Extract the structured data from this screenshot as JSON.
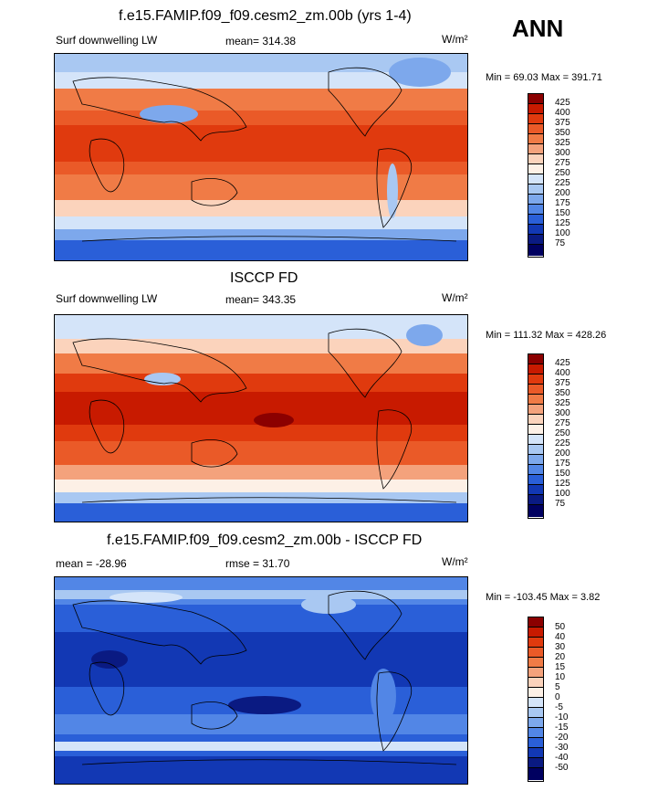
{
  "season": "ANN",
  "chart_data": [
    {
      "type": "heatmap",
      "id": "model",
      "title": "f.e15.FAMIP.f09_f09.cesm2_zm.00b (yrs 1-4)",
      "left_label": "Surf downwelling LW",
      "center_label": "mean= 314.38",
      "units": "W/m²",
      "minmax": "Min =  69.03 Max = 391.71",
      "levels": [
        "425",
        "400",
        "375",
        "350",
        "325",
        "300",
        "275",
        "250",
        "225",
        "200",
        "175",
        "150",
        "125",
        "100",
        "75"
      ],
      "colors": [
        "#8b0000",
        "#c81a00",
        "#e03a0e",
        "#ea5a28",
        "#f07b46",
        "#f4a27c",
        "#fbd3bc",
        "#fdf0e6",
        "#d4e4f9",
        "#a9c8f2",
        "#7da8ec",
        "#5286e6",
        "#2a5fd8",
        "#1238b4",
        "#0a1a82",
        "#000060"
      ]
    },
    {
      "type": "heatmap",
      "id": "obs",
      "title": "ISCCP FD",
      "left_label": "Surf downwelling LW",
      "center_label": "mean= 343.35",
      "units": "W/m²",
      "minmax": "Min = 111.32 Max = 428.26",
      "levels": [
        "425",
        "400",
        "375",
        "350",
        "325",
        "300",
        "275",
        "250",
        "225",
        "200",
        "175",
        "150",
        "125",
        "100",
        "75"
      ],
      "colors": [
        "#8b0000",
        "#c81a00",
        "#e03a0e",
        "#ea5a28",
        "#f07b46",
        "#f4a27c",
        "#fbd3bc",
        "#fdf0e6",
        "#d4e4f9",
        "#a9c8f2",
        "#7da8ec",
        "#5286e6",
        "#2a5fd8",
        "#1238b4",
        "#0a1a82",
        "#000060"
      ]
    },
    {
      "type": "heatmap",
      "id": "diff",
      "title": "f.e15.FAMIP.f09_f09.cesm2_zm.00b - ISCCP FD",
      "left_label": "mean = -28.96",
      "center_label": "rmse =  31.70",
      "units": "W/m²",
      "minmax": "Min = -103.45 Max =   3.82",
      "levels": [
        "50",
        "40",
        "30",
        "20",
        "15",
        "10",
        "5",
        "0",
        "-5",
        "-10",
        "-15",
        "-20",
        "-30",
        "-40",
        "-50"
      ],
      "colors": [
        "#8b0000",
        "#c81a00",
        "#e03a0e",
        "#ea5a28",
        "#f07b46",
        "#f4a27c",
        "#fbd3bc",
        "#fdf0e6",
        "#d4e4f9",
        "#a9c8f2",
        "#7da8ec",
        "#5286e6",
        "#2a5fd8",
        "#1238b4",
        "#0a1a82",
        "#000060"
      ]
    }
  ]
}
